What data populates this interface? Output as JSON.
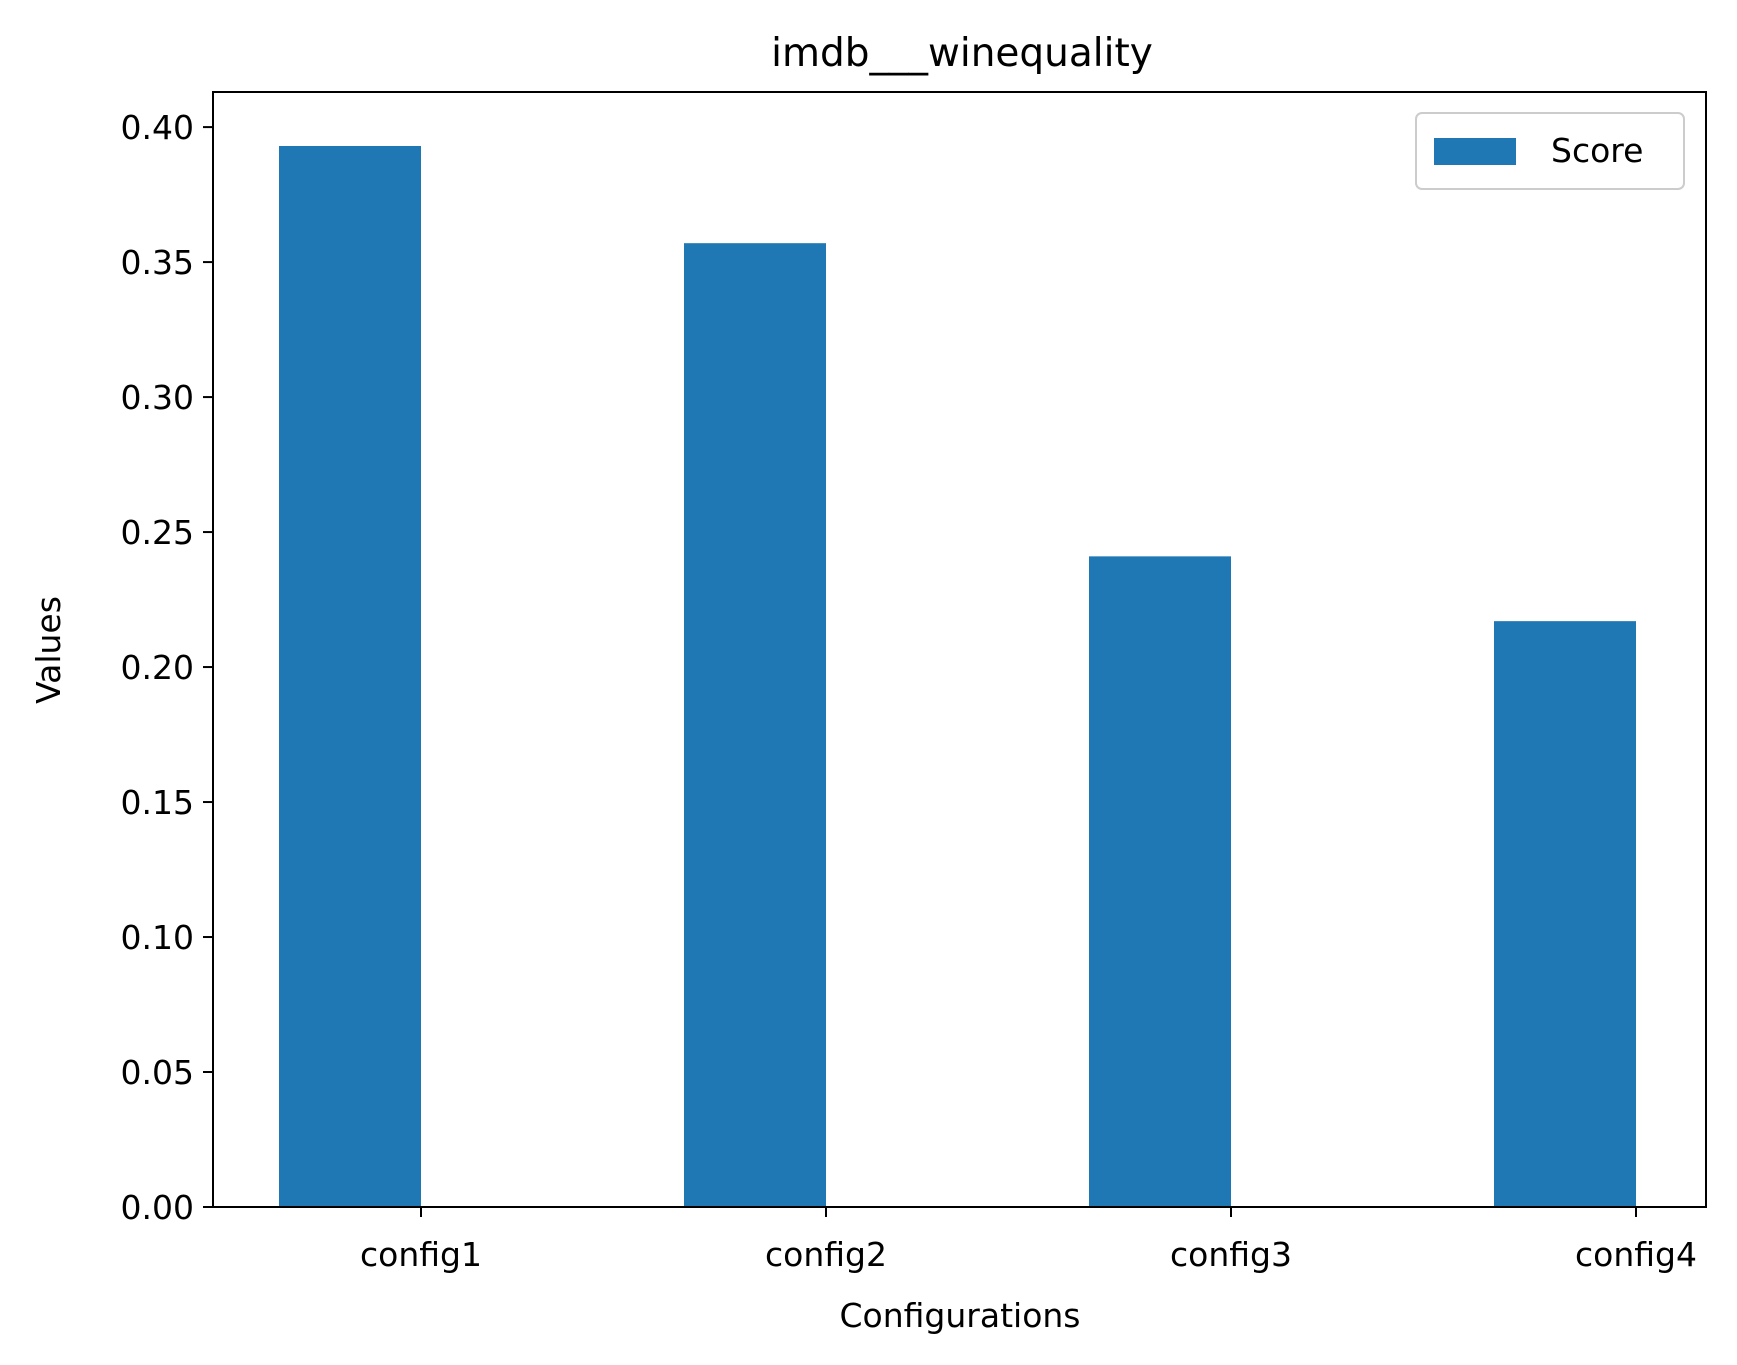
{
  "chart_data": {
    "type": "bar",
    "title": "imdb___winequality",
    "xlabel": "Configurations",
    "ylabel": "Values",
    "categories": [
      "config1",
      "config2",
      "config3",
      "config4"
    ],
    "series": [
      {
        "name": "Score",
        "values": [
          0.393,
          0.357,
          0.241,
          0.217
        ],
        "color": "#1f77b4"
      }
    ],
    "ylim": [
      0,
      0.413
    ],
    "yticks": [
      "0.00",
      "0.05",
      "0.10",
      "0.15",
      "0.20",
      "0.25",
      "0.30",
      "0.35",
      "0.40"
    ],
    "legend_position": "top-right",
    "grid": false
  }
}
